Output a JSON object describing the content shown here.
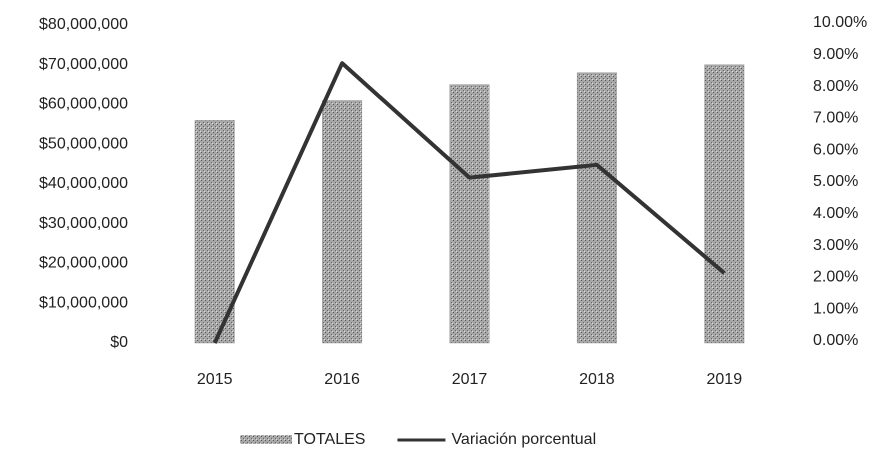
{
  "chart_data": {
    "type": "bar",
    "categories": [
      "2015",
      "2016",
      "2017",
      "2018",
      "2019"
    ],
    "series": [
      {
        "name": "TOTALES",
        "type": "bar",
        "axis": "y",
        "color": "#9a9a9a",
        "values": [
          56000000,
          61000000,
          65000000,
          68000000,
          70000000
        ]
      },
      {
        "name": "Variación porcentual",
        "type": "line",
        "axis": "y2",
        "color": "#333333",
        "values": [
          0.0,
          8.8,
          5.2,
          5.6,
          2.2
        ]
      }
    ],
    "ylim": [
      0,
      80000000
    ],
    "yticks": [
      {
        "value": 0,
        "label": "$0"
      },
      {
        "value": 10000000,
        "label": "$10,000,000"
      },
      {
        "value": 20000000,
        "label": "$20,000,000"
      },
      {
        "value": 30000000,
        "label": "$30,000,000"
      },
      {
        "value": 40000000,
        "label": "$40,000,000"
      },
      {
        "value": 50000000,
        "label": "$50,000,000"
      },
      {
        "value": 60000000,
        "label": "$60,000,000"
      },
      {
        "value": 70000000,
        "label": "$70,000,000"
      },
      {
        "value": 80000000,
        "label": "$80,000,000"
      }
    ],
    "y2lim": [
      0,
      10
    ],
    "y2ticks": [
      {
        "value": 0,
        "label": "0.00%"
      },
      {
        "value": 1,
        "label": "1.00%"
      },
      {
        "value": 2,
        "label": "2.00%"
      },
      {
        "value": 3,
        "label": "3.00%"
      },
      {
        "value": 4,
        "label": "4.00%"
      },
      {
        "value": 5,
        "label": "5.00%"
      },
      {
        "value": 6,
        "label": "6.00%"
      },
      {
        "value": 7,
        "label": "7.00%"
      },
      {
        "value": 8,
        "label": "8.00%"
      },
      {
        "value": 9,
        "label": "9.00%"
      },
      {
        "value": 10,
        "label": "10.00%"
      }
    ],
    "grid": false,
    "legend": "bottom"
  }
}
